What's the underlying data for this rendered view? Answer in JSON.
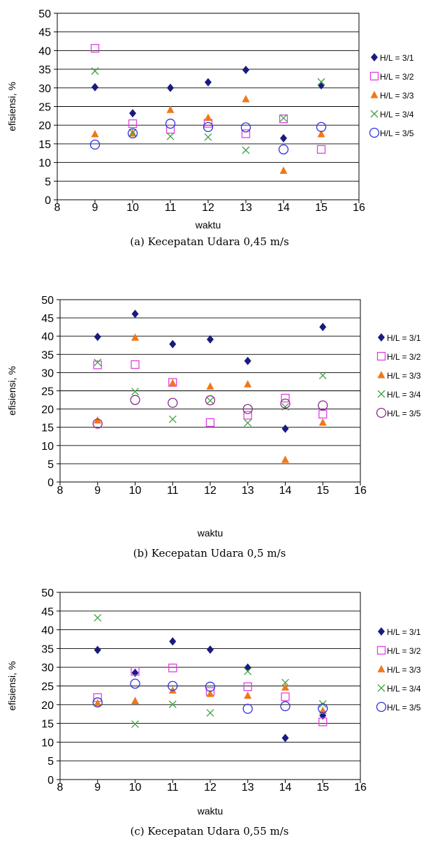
{
  "chart_data": [
    {
      "type": "scatter",
      "caption": "(a) Kecepatan Udara 0,45 m/s",
      "xlabel": "waktu",
      "ylabel": "efisiensi, %",
      "xlim": [
        8,
        16
      ],
      "ylim": [
        0,
        50
      ],
      "x_ticks": [
        8,
        9,
        10,
        11,
        12,
        13,
        14,
        15,
        16
      ],
      "y_ticks": [
        0,
        5,
        10,
        15,
        20,
        25,
        30,
        35,
        40,
        45,
        50
      ],
      "grid": "horizontal",
      "legend_position": "right",
      "x": [
        9,
        10,
        11,
        12,
        13,
        14,
        15
      ],
      "series": [
        {
          "name": "H/L = 3/1",
          "marker": "diamond",
          "color": "#1a1a80",
          "values": [
            30.2,
            23.2,
            30.0,
            31.5,
            34.8,
            16.5,
            30.7
          ]
        },
        {
          "name": "H/L = 3/2",
          "marker": "square",
          "color": "#e040e0",
          "values": [
            40.6,
            20.4,
            18.9,
            20.5,
            17.7,
            21.7,
            13.5
          ]
        },
        {
          "name": "H/L = 3/3",
          "marker": "triangle",
          "color": "#f07818",
          "values": [
            17.6,
            17.8,
            24.1,
            22.0,
            27.0,
            7.8,
            17.6
          ]
        },
        {
          "name": "H/L = 3/4",
          "marker": "x",
          "color": "#40a040",
          "values": [
            34.5,
            18.0,
            17.0,
            16.8,
            13.3,
            21.9,
            31.6
          ]
        },
        {
          "name": "H/L = 3/5",
          "marker": "circle",
          "color": "#2f2fe0",
          "values": [
            14.8,
            17.8,
            20.4,
            19.5,
            19.4,
            13.5,
            19.5
          ]
        }
      ]
    },
    {
      "type": "scatter",
      "caption": "(b) Kecepatan Udara 0,5 m/s",
      "xlabel": "waktu",
      "ylabel": "efisiensi, %",
      "xlim": [
        8,
        16
      ],
      "ylim": [
        0,
        50
      ],
      "x_ticks": [
        8,
        9,
        10,
        11,
        12,
        13,
        14,
        15,
        16
      ],
      "y_ticks": [
        0,
        5,
        10,
        15,
        20,
        25,
        30,
        35,
        40,
        45,
        50
      ],
      "grid": "horizontal",
      "legend_position": "right",
      "x": [
        9,
        10,
        11,
        12,
        13,
        14,
        15
      ],
      "series": [
        {
          "name": "H/L = 3/1",
          "marker": "diamond",
          "color": "#1a1a80",
          "values": [
            39.8,
            46.1,
            37.8,
            39.1,
            33.2,
            14.6,
            42.5
          ]
        },
        {
          "name": "H/L = 3/2",
          "marker": "square",
          "color": "#e040e0",
          "values": [
            32.1,
            32.2,
            27.3,
            16.3,
            18.3,
            23.0,
            18.6
          ]
        },
        {
          "name": "H/L = 3/3",
          "marker": "triangle",
          "color": "#f07818",
          "values": [
            16.9,
            39.6,
            27.1,
            26.2,
            26.8,
            6.1,
            16.3
          ]
        },
        {
          "name": "H/L = 3/4",
          "marker": "x",
          "color": "#40a040",
          "values": [
            32.8,
            24.8,
            17.2,
            22.3,
            16.2,
            20.6,
            29.2
          ]
        },
        {
          "name": "H/L = 3/5",
          "marker": "circle",
          "color": "#8a2a8a",
          "values": [
            16.0,
            22.5,
            21.7,
            22.4,
            20.0,
            21.5,
            21.0
          ]
        }
      ]
    },
    {
      "type": "scatter",
      "caption": "(c) Kecepatan Udara 0,55 m/s",
      "xlabel": "waktu",
      "ylabel": "efisiensi, %",
      "xlim": [
        8,
        16
      ],
      "ylim": [
        0,
        50
      ],
      "x_ticks": [
        8,
        9,
        10,
        11,
        12,
        13,
        14,
        15,
        16
      ],
      "y_ticks": [
        0,
        5,
        10,
        15,
        20,
        25,
        30,
        35,
        40,
        45,
        50
      ],
      "grid": "horizontal",
      "legend_position": "right",
      "x": [
        9,
        10,
        11,
        12,
        13,
        14,
        15
      ],
      "series": [
        {
          "name": "H/L = 3/1",
          "marker": "diamond",
          "color": "#1a1a80",
          "values": [
            34.6,
            28.5,
            36.9,
            34.7,
            29.9,
            11.1,
            17.1
          ]
        },
        {
          "name": "H/L = 3/2",
          "marker": "square",
          "color": "#e040e0",
          "values": [
            21.9,
            28.9,
            29.8,
            23.5,
            24.8,
            22.1,
            15.4
          ]
        },
        {
          "name": "H/L = 3/3",
          "marker": "triangle",
          "color": "#f07818",
          "values": [
            20.4,
            21.0,
            23.8,
            22.9,
            22.4,
            24.6,
            18.4
          ]
        },
        {
          "name": "H/L = 3/4",
          "marker": "x",
          "color": "#40a040",
          "values": [
            43.2,
            14.8,
            20.1,
            17.8,
            28.9,
            25.9,
            20.2
          ]
        },
        {
          "name": "H/L = 3/5",
          "marker": "circle",
          "color": "#2f2fe0",
          "values": [
            20.6,
            25.6,
            25.0,
            24.8,
            18.9,
            19.6,
            19.0
          ]
        }
      ]
    }
  ]
}
